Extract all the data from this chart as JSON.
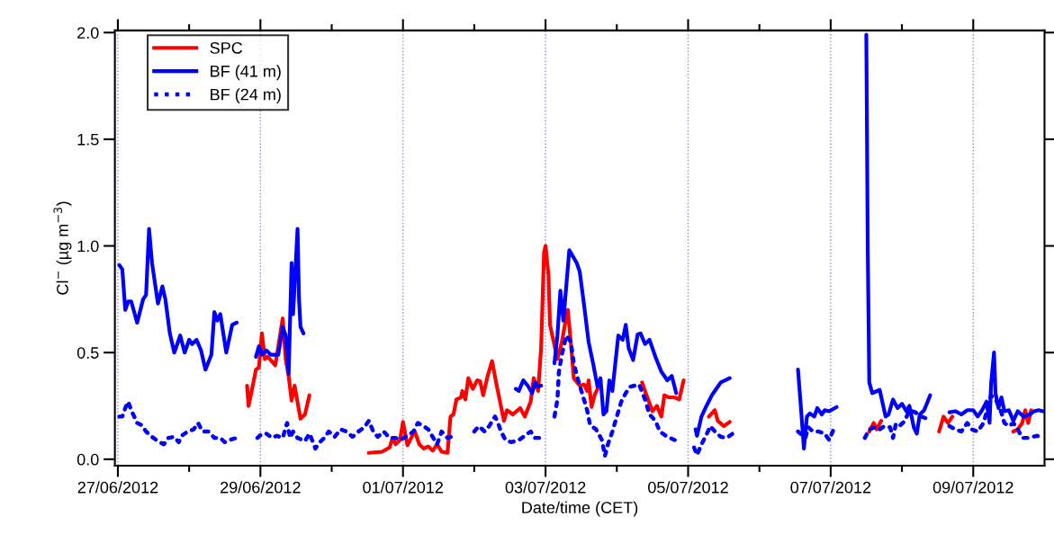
{
  "chart_data": {
    "type": "line",
    "xlabel": "Date/time (CET)",
    "ylabel": "Cl$^{−}$ (µg m$^{−3}$)",
    "xlim": [
      "2012-06-26T23:00",
      "2012-07-10T00:00"
    ],
    "xticks": [
      {
        "value": "2012-06-27",
        "label": "27/06/2012"
      },
      {
        "value": "2012-06-28",
        "label": null
      },
      {
        "value": "2012-06-29",
        "label": "29/06/2012"
      },
      {
        "value": "2012-06-30",
        "label": null
      },
      {
        "value": "2012-07-01",
        "label": "01/07/2012"
      },
      {
        "value": "2012-07-02",
        "label": null
      },
      {
        "value": "2012-07-03",
        "label": "03/07/2012"
      },
      {
        "value": "2012-07-04",
        "label": null
      },
      {
        "value": "2012-07-05",
        "label": "05/07/2012"
      },
      {
        "value": "2012-07-06",
        "label": null
      },
      {
        "value": "2012-07-07",
        "label": "07/07/2012"
      },
      {
        "value": "2012-07-08",
        "label": null
      },
      {
        "value": "2012-07-09",
        "label": "09/07/2012"
      }
    ],
    "ylim": [
      -0.03,
      2.01
    ],
    "yticks": [
      {
        "value": 0,
        "label": "0.0"
      },
      {
        "value": 0.5,
        "label": "0.5"
      },
      {
        "value": 1,
        "label": "1.0"
      },
      {
        "value": 1.5,
        "label": "1.5"
      },
      {
        "value": 2,
        "label": "2.0"
      }
    ],
    "grid": "x",
    "legend": "top left",
    "marker": "none",
    "series": [
      {
        "name": "SPC",
        "color": "#ff0000",
        "line_style": "solid",
        "x": [
          "2012-06-28T19:30",
          "2012-06-28T20:00",
          "2012-06-28T21:30",
          "2012-06-28T22:30",
          "2012-06-28T23:30",
          "2012-06-29T00:30",
          "2012-06-29T01:30",
          "2012-06-29T02:30",
          "2012-06-29T05:00",
          "2012-06-29T07:30",
          "2012-06-29T08:30",
          "2012-06-29T09:30",
          "2012-06-29T10:30",
          "2012-06-29T11:30",
          "2012-06-29T13:30",
          "2012-06-29T15:00",
          "2012-06-29T16:30",
          "2012-06-30T00:00",
          "2012-06-30T12:30",
          "2012-06-30T17:00",
          "2012-06-30T19:30",
          "2012-06-30T20:30",
          "2012-06-30T21:30",
          "2012-06-30T23:00",
          "2012-07-01T00:00",
          "2012-07-01T01:30",
          "2012-07-01T03:30",
          "2012-07-01T04:00",
          "2012-07-01T05:30",
          "2012-07-01T07:00",
          "2012-07-01T08:30",
          "2012-07-01T10:00",
          "2012-07-01T11:30",
          "2012-07-01T13:00",
          "2012-07-01T15:00",
          "2012-07-01T16:00",
          "2012-07-01T17:00",
          "2012-07-01T18:00",
          "2012-07-01T19:30",
          "2012-07-01T20:00",
          "2012-07-01T21:00",
          "2012-07-01T22:00",
          "2012-07-01T23:30",
          "2012-07-02T01:00",
          "2012-07-02T02:00",
          "2012-07-02T03:00",
          "2012-07-02T04:30",
          "2012-07-02T06:00",
          "2012-07-02T07:30",
          "2012-07-02T10:00",
          "2012-07-02T11:00",
          "2012-07-02T13:00",
          "2012-07-02T15:30",
          "2012-07-02T17:00",
          "2012-07-02T19:00",
          "2012-07-02T20:00",
          "2012-07-02T21:30",
          "2012-07-02T22:30",
          "2012-07-02T23:30",
          "2012-07-03T00:00",
          "2012-07-03T01:00",
          "2012-07-03T01:30",
          "2012-07-03T04:00",
          "2012-07-03T05:30",
          "2012-07-03T06:30",
          "2012-07-03T07:30",
          "2012-07-03T08:30",
          "2012-07-03T09:30",
          "2012-07-03T11:30",
          "2012-07-03T13:00",
          "2012-07-03T14:00",
          "2012-07-03T14:30",
          "2012-07-03T15:30",
          "2012-07-03T16:30",
          "2012-07-03T17:30",
          "2012-07-04T02:00",
          "2012-07-04T08:30",
          "2012-07-04T10:00",
          "2012-07-04T12:00",
          "2012-07-04T13:30",
          "2012-07-04T15:00",
          "2012-07-04T16:00",
          "2012-07-04T17:30",
          "2012-07-04T19:30",
          "2012-07-04T21:00",
          "2012-07-04T22:30",
          "2012-07-05T03:00",
          "2012-07-05T07:00",
          "2012-07-05T09:00",
          "2012-07-05T10:00",
          "2012-07-05T12:00",
          "2012-07-05T14:00",
          "2012-07-06T12:00",
          "2012-07-07T13:00",
          "2012-07-07T14:30",
          "2012-07-07T15:30",
          "2012-07-07T17:00",
          "2012-07-08T10:00",
          "2012-07-08T12:30",
          "2012-07-08T14:00",
          "2012-07-08T15:30",
          "2012-07-08T17:00",
          "2012-07-09T10:00",
          "2012-07-09T13:30",
          "2012-07-09T15:00",
          "2012-07-09T16:30",
          "2012-07-09T17:30",
          "2012-07-09T18:30",
          "2012-07-09T19:30"
        ],
        "values": [
          0.345,
          0.25,
          0.35,
          0.42,
          0.43,
          0.59,
          0.47,
          0.48,
          0.44,
          0.66,
          0.47,
          0.39,
          0.275,
          0.345,
          0.19,
          0.21,
          0.3,
          null,
          0.03,
          0.035,
          0.055,
          0.1,
          0.07,
          0.09,
          0.175,
          0.065,
          0.12,
          0.13,
          0.07,
          0.05,
          0.06,
          0.04,
          0.07,
          0.035,
          0.03,
          0.2,
          0.21,
          0.28,
          0.29,
          0.32,
          0.28,
          0.38,
          0.33,
          0.37,
          0.365,
          0.3,
          0.39,
          0.46,
          0.35,
          0.18,
          0.23,
          0.21,
          0.24,
          0.2,
          0.27,
          0.38,
          0.32,
          0.52,
          0.97,
          1.0,
          0.86,
          0.63,
          0.47,
          0.55,
          0.63,
          0.7,
          0.55,
          0.38,
          0.345,
          0.35,
          0.32,
          0.37,
          0.245,
          0.3,
          0.33,
          null,
          0.36,
          0.3,
          0.225,
          0.25,
          0.2,
          0.3,
          0.29,
          0.29,
          0.28,
          0.37,
          null,
          0.2,
          0.23,
          0.18,
          0.155,
          0.175,
          null,
          0.13,
          0.17,
          0.14,
          0.18,
          null,
          0.13,
          0.2,
          0.17,
          0.2,
          null,
          0.13,
          0.14,
          0.17,
          0.23,
          0.17,
          0.23
        ]
      },
      {
        "name": "BF (41 m)",
        "color": "#0000ff",
        "line_style": "solid",
        "x": [
          "2012-06-27T00:30",
          "2012-06-27T01:30",
          "2012-06-27T02:30",
          "2012-06-27T03:30",
          "2012-06-27T04:30",
          "2012-06-27T06:30",
          "2012-06-27T08:30",
          "2012-06-27T09:30",
          "2012-06-27T10:30",
          "2012-06-27T11:30",
          "2012-06-27T13:30",
          "2012-06-27T15:00",
          "2012-06-27T16:00",
          "2012-06-27T17:30",
          "2012-06-27T19:00",
          "2012-06-27T21:00",
          "2012-06-27T22:30",
          "2012-06-28T00:00",
          "2012-06-28T01:00",
          "2012-06-28T02:30",
          "2012-06-28T04:00",
          "2012-06-28T05:30",
          "2012-06-28T07:30",
          "2012-06-28T08:30",
          "2012-06-28T09:30",
          "2012-06-28T10:30",
          "2012-06-28T12:30",
          "2012-06-28T14:30",
          "2012-06-28T16:00",
          "2012-06-28T19:00",
          "2012-06-28T22:30",
          "2012-06-28T23:30",
          "2012-06-29T00:30",
          "2012-06-29T02:00",
          "2012-06-29T03:30",
          "2012-06-29T06:00",
          "2012-06-29T07:30",
          "2012-06-29T08:30",
          "2012-06-29T09:30",
          "2012-06-29T10:30",
          "2012-06-29T11:00",
          "2012-06-29T12:30",
          "2012-06-29T13:00",
          "2012-06-29T13:30",
          "2012-06-29T14:30",
          "2012-07-01T00:00",
          "2012-07-02T14:00",
          "2012-07-02T15:00",
          "2012-07-02T16:30",
          "2012-07-02T18:00",
          "2012-07-02T19:30",
          "2012-07-02T20:30",
          "2012-07-02T21:30",
          "2012-07-02T22:30",
          "2012-07-03T01:00",
          "2012-07-03T03:00",
          "2012-07-03T04:00",
          "2012-07-03T05:00",
          "2012-07-03T06:00",
          "2012-07-03T08:00",
          "2012-07-03T10:30",
          "2012-07-03T11:30",
          "2012-07-03T13:00",
          "2012-07-03T14:30",
          "2012-07-03T16:00",
          "2012-07-03T17:30",
          "2012-07-03T18:30",
          "2012-07-03T19:30",
          "2012-07-03T20:30",
          "2012-07-03T21:30",
          "2012-07-03T22:30",
          "2012-07-04T00:30",
          "2012-07-04T02:00",
          "2012-07-04T03:00",
          "2012-07-04T04:00",
          "2012-07-04T05:30",
          "2012-07-04T07:00",
          "2012-07-04T08:00",
          "2012-07-04T09:30",
          "2012-07-04T11:00",
          "2012-07-04T13:00",
          "2012-07-04T15:00",
          "2012-07-04T17:00",
          "2012-07-04T18:30",
          "2012-07-04T20:00",
          "2012-07-05T00:00",
          "2012-07-05T02:30",
          "2012-07-05T03:00",
          "2012-07-05T04:30",
          "2012-07-05T06:00",
          "2012-07-05T08:00",
          "2012-07-05T09:30",
          "2012-07-05T11:00",
          "2012-07-05T14:00",
          "2012-07-06T06:00",
          "2012-07-06T13:00",
          "2012-07-06T14:00",
          "2012-07-06T15:00",
          "2012-07-06T16:00",
          "2012-07-06T17:00",
          "2012-07-06T18:30",
          "2012-07-06T19:30",
          "2012-07-06T21:00",
          "2012-07-06T22:00",
          "2012-07-06T23:30",
          "2012-07-07T02:00",
          "2012-07-07T06:00",
          "2012-07-07T12:00",
          "2012-07-07T12:30",
          "2012-07-07T13:00",
          "2012-07-07T14:00",
          "2012-07-07T16:30",
          "2012-07-07T18:30",
          "2012-07-07T19:30",
          "2012-07-07T21:00",
          "2012-07-07T22:30",
          "2012-07-08T00:00",
          "2012-07-08T01:30",
          "2012-07-08T02:30",
          "2012-07-08T04:00",
          "2012-07-08T05:00",
          "2012-07-08T06:00",
          "2012-07-08T07:30",
          "2012-07-08T09:30",
          "2012-07-08T12:00",
          "2012-07-08T16:00",
          "2012-07-08T18:00",
          "2012-07-08T20:00",
          "2012-07-08T22:00",
          "2012-07-09T00:00",
          "2012-07-09T01:30",
          "2012-07-09T03:00",
          "2012-07-09T04:30",
          "2012-07-09T05:30",
          "2012-07-09T06:00",
          "2012-07-09T07:00",
          "2012-07-09T07:30",
          "2012-07-09T08:30",
          "2012-07-09T09:30",
          "2012-07-09T10:30",
          "2012-07-09T12:00",
          "2012-07-09T13:30",
          "2012-07-09T15:00",
          "2012-07-09T17:00",
          "2012-07-09T19:00",
          "2012-07-09T20:30",
          "2012-07-09T22:00",
          "2012-07-09T23:30"
        ],
        "values": [
          0.91,
          0.89,
          0.7,
          0.74,
          0.74,
          0.64,
          0.75,
          0.77,
          1.08,
          0.92,
          0.73,
          0.81,
          0.75,
          0.59,
          0.5,
          0.58,
          0.5,
          0.56,
          0.54,
          0.56,
          0.51,
          0.42,
          0.49,
          0.69,
          0.65,
          0.68,
          0.5,
          0.63,
          0.64,
          null,
          0.48,
          0.53,
          0.49,
          0.51,
          0.49,
          0.49,
          0.62,
          0.58,
          0.4,
          0.92,
          0.68,
          1.08,
          0.75,
          0.62,
          0.59,
          null,
          0.33,
          0.32,
          0.37,
          0.345,
          0.31,
          0.36,
          0.34,
          0.345,
          null,
          0.45,
          0.58,
          0.79,
          0.65,
          0.98,
          0.92,
          0.88,
          0.72,
          0.55,
          0.45,
          0.34,
          0.38,
          0.21,
          0.225,
          0.37,
          0.32,
          0.58,
          0.56,
          0.63,
          0.52,
          0.465,
          0.585,
          0.59,
          0.54,
          0.56,
          0.48,
          0.41,
          0.37,
          0.39,
          0.31,
          null,
          0.14,
          0.11,
          0.2,
          0.245,
          0.3,
          0.33,
          0.36,
          0.38,
          null,
          0.42,
          0.24,
          0.05,
          0.2,
          0.215,
          0.2,
          0.24,
          0.21,
          0.23,
          0.225,
          0.245,
          null,
          1.99,
          0.97,
          0.36,
          0.31,
          0.325,
          0.2,
          0.21,
          0.28,
          0.24,
          0.26,
          0.225,
          0.25,
          0.15,
          0.12,
          0.21,
          0.23,
          0.3,
          null,
          0.22,
          0.225,
          0.21,
          0.23,
          0.23,
          0.2,
          0.23,
          0.27,
          0.17,
          0.35,
          0.5,
          0.31,
          0.24,
          0.29,
          0.225,
          0.23,
          0.18,
          0.225,
          0.2,
          0.21,
          0.225,
          0.23,
          0.225
        ]
      },
      {
        "name": "BF (24 m)",
        "color": "#0000ff",
        "line_style": "dotted",
        "x": [
          "2012-06-27T00:30",
          "2012-06-27T01:30",
          "2012-06-27T02:30",
          "2012-06-27T03:30",
          "2012-06-27T04:30",
          "2012-06-27T05:30",
          "2012-06-27T06:30",
          "2012-06-27T08:00",
          "2012-06-27T09:30",
          "2012-06-27T11:30",
          "2012-06-27T13:30",
          "2012-06-27T15:30",
          "2012-06-27T17:00",
          "2012-06-27T19:00",
          "2012-06-27T20:30",
          "2012-06-27T21:30",
          "2012-06-27T23:30",
          "2012-06-28T01:30",
          "2012-06-28T03:00",
          "2012-06-28T04:30",
          "2012-06-28T06:30",
          "2012-06-28T08:30",
          "2012-06-28T10:30",
          "2012-06-28T12:00",
          "2012-06-28T13:30",
          "2012-06-28T16:00",
          "2012-06-28T19:00",
          "2012-06-28T23:00",
          "2012-06-29T00:30",
          "2012-06-29T02:00",
          "2012-06-29T04:00",
          "2012-06-29T05:30",
          "2012-06-29T07:30",
          "2012-06-29T09:00",
          "2012-06-29T10:00",
          "2012-06-29T11:00",
          "2012-06-29T12:30",
          "2012-06-29T15:00",
          "2012-06-29T16:30",
          "2012-06-29T18:00",
          "2012-06-29T18:30",
          "2012-06-29T20:00",
          "2012-06-29T21:30",
          "2012-06-29T23:00",
          "2012-06-30T01:00",
          "2012-06-30T03:00",
          "2012-06-30T05:00",
          "2012-06-30T07:00",
          "2012-06-30T09:00",
          "2012-06-30T11:00",
          "2012-06-30T12:30",
          "2012-06-30T14:00",
          "2012-06-30T15:30",
          "2012-06-30T17:30",
          "2012-06-30T19:30",
          "2012-06-30T21:30",
          "2012-06-30T23:00",
          "2012-07-01T01:30",
          "2012-07-01T03:30",
          "2012-07-01T05:00",
          "2012-07-01T07:00",
          "2012-07-01T08:30",
          "2012-07-01T10:00",
          "2012-07-01T11:30",
          "2012-07-01T13:00",
          "2012-07-01T15:00",
          "2012-07-01T17:30",
          "2012-07-01T20:00",
          "2012-07-02T00:00",
          "2012-07-02T01:30",
          "2012-07-02T03:30",
          "2012-07-02T05:00",
          "2012-07-02T07:00",
          "2012-07-02T08:00",
          "2012-07-02T09:00",
          "2012-07-02T10:30",
          "2012-07-02T12:30",
          "2012-07-02T15:00",
          "2012-07-02T17:00",
          "2012-07-02T19:00",
          "2012-07-02T20:30",
          "2012-07-02T22:00",
          "2012-07-03T01:00",
          "2012-07-03T03:00",
          "2012-07-03T04:00",
          "2012-07-03T04:30",
          "2012-07-03T05:30",
          "2012-07-03T07:00",
          "2012-07-03T08:30",
          "2012-07-03T09:30",
          "2012-07-03T11:00",
          "2012-07-03T12:30",
          "2012-07-03T14:00",
          "2012-07-03T15:00",
          "2012-07-03T17:00",
          "2012-07-03T19:00",
          "2012-07-03T20:00",
          "2012-07-03T21:00",
          "2012-07-03T22:30",
          "2012-07-04T00:00",
          "2012-07-04T01:30",
          "2012-07-04T03:00",
          "2012-07-04T04:30",
          "2012-07-04T06:00",
          "2012-07-04T07:30",
          "2012-07-04T09:30",
          "2012-07-04T11:00",
          "2012-07-04T13:00",
          "2012-07-04T14:30",
          "2012-07-04T17:00",
          "2012-07-04T19:30",
          "2012-07-05T00:00",
          "2012-07-05T02:00",
          "2012-07-05T03:00",
          "2012-07-05T04:30",
          "2012-07-05T06:00",
          "2012-07-05T07:30",
          "2012-07-05T09:00",
          "2012-07-05T11:00",
          "2012-07-05T13:00",
          "2012-07-05T15:00",
          "2012-07-06T06:00",
          "2012-07-06T13:00",
          "2012-07-06T15:30",
          "2012-07-06T16:30",
          "2012-07-06T18:00",
          "2012-07-06T20:00",
          "2012-07-06T22:00",
          "2012-07-06T23:30",
          "2012-07-07T01:00",
          "2012-07-07T06:00",
          "2012-07-07T11:30",
          "2012-07-07T13:00",
          "2012-07-07T15:00",
          "2012-07-07T16:30",
          "2012-07-07T18:00",
          "2012-07-07T20:00",
          "2012-07-07T21:00",
          "2012-07-07T22:00",
          "2012-07-07T23:30",
          "2012-07-08T01:00",
          "2012-07-08T02:30",
          "2012-07-08T04:30",
          "2012-07-08T06:30",
          "2012-07-08T08:30",
          "2012-07-08T12:00",
          "2012-07-08T16:00",
          "2012-07-08T18:00",
          "2012-07-08T20:00",
          "2012-07-08T22:00",
          "2012-07-08T23:30",
          "2012-07-09T01:30",
          "2012-07-09T03:30",
          "2012-07-09T06:00",
          "2012-07-09T07:30",
          "2012-07-09T09:00",
          "2012-07-09T10:30",
          "2012-07-09T12:00",
          "2012-07-09T13:30",
          "2012-07-09T15:00",
          "2012-07-09T16:30",
          "2012-07-09T18:30",
          "2012-07-09T21:30",
          "2012-07-09T23:30"
        ],
        "values": [
          0.2,
          0.2,
          0.24,
          0.27,
          0.23,
          0.2,
          0.17,
          0.16,
          0.13,
          0.105,
          0.085,
          0.07,
          0.1,
          0.105,
          0.08,
          0.11,
          0.13,
          0.14,
          0.17,
          0.13,
          0.13,
          0.1,
          0.1,
          0.08,
          0.09,
          0.1,
          null,
          0.1,
          0.12,
          0.12,
          0.1,
          0.11,
          0.1,
          0.17,
          0.1,
          0.13,
          0.1,
          0.085,
          0.12,
          0.07,
          0.05,
          0.08,
          0.1,
          0.13,
          0.105,
          0.14,
          0.13,
          0.105,
          0.13,
          0.15,
          0.18,
          0.13,
          0.105,
          0.13,
          0.1,
          0.1,
          0.09,
          0.11,
          0.13,
          0.17,
          0.155,
          0.14,
          0.105,
          0.07,
          0.13,
          0.1,
          0.11,
          null,
          0.13,
          0.155,
          0.13,
          0.155,
          0.2,
          0.17,
          0.13,
          0.09,
          0.08,
          0.09,
          0.11,
          0.13,
          0.1,
          0.1,
          null,
          0.2,
          0.28,
          0.41,
          0.49,
          0.58,
          0.55,
          0.45,
          0.37,
          0.3,
          0.23,
          0.16,
          0.14,
          0.09,
          0.015,
          0.07,
          0.13,
          0.2,
          0.27,
          0.31,
          0.34,
          0.345,
          0.35,
          0.28,
          0.21,
          0.18,
          0.13,
          0.105,
          0.09,
          null,
          0.055,
          0.02,
          0.07,
          0.11,
          0.155,
          0.13,
          0.105,
          0.1,
          0.12,
          null,
          0.13,
          0.1,
          0.15,
          0.13,
          0.13,
          0.12,
          0.09,
          0.14,
          null,
          0.1,
          0.14,
          0.15,
          0.14,
          0.155,
          0.15,
          0.1,
          0.17,
          0.16,
          0.18,
          0.23,
          0.22,
          0.2,
          0.19,
          null,
          0.155,
          0.14,
          0.13,
          0.17,
          0.14,
          0.13,
          0.17,
          0.3,
          0.28,
          0.24,
          0.17,
          0.155,
          0.17,
          0.14,
          0.1,
          0.1,
          0.11,
          0.1
        ]
      }
    ]
  }
}
